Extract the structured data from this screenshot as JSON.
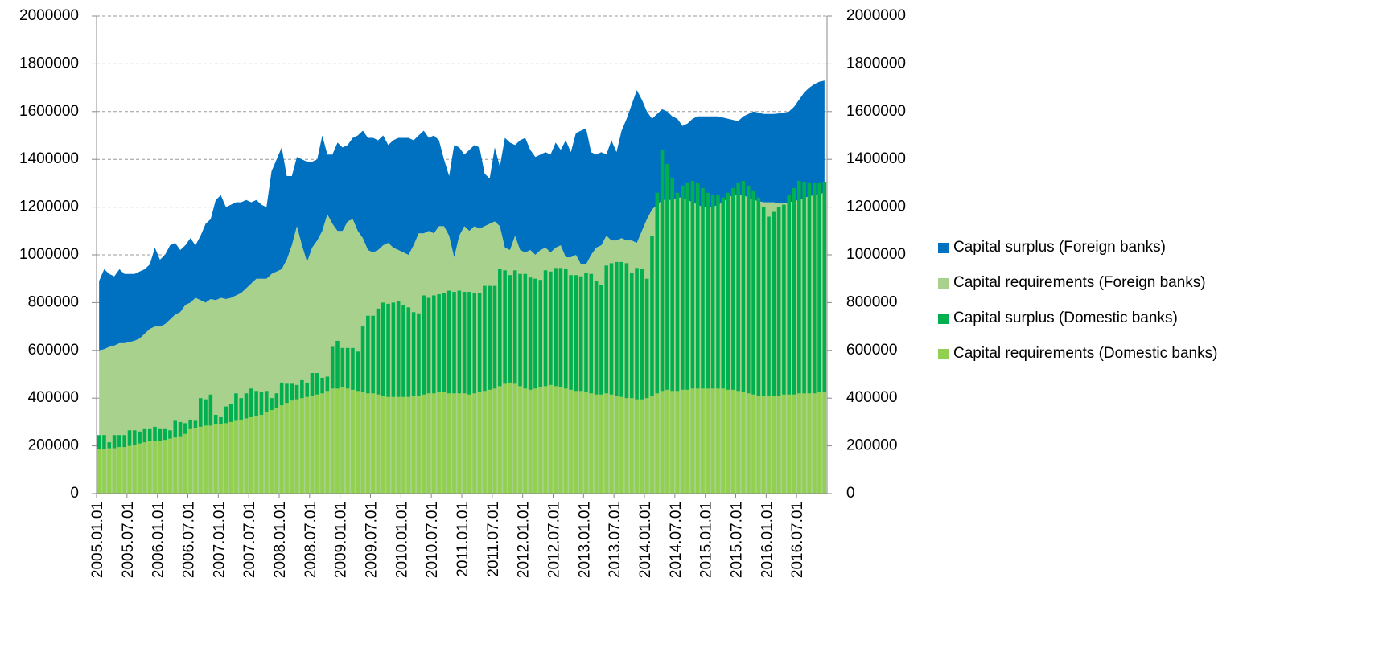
{
  "chart_data": {
    "type": "combo",
    "categories": [
      "2005.01.01",
      null,
      null,
      null,
      null,
      null,
      "2005.07.01",
      null,
      null,
      null,
      null,
      null,
      "2006.01.01",
      null,
      null,
      null,
      null,
      null,
      "2006.07.01",
      null,
      null,
      null,
      null,
      null,
      "2007.01.01",
      null,
      null,
      null,
      null,
      null,
      "2007.07.01",
      null,
      null,
      null,
      null,
      null,
      "2008.01.01",
      null,
      null,
      null,
      null,
      null,
      "2008.07.01",
      null,
      null,
      null,
      null,
      null,
      "2009.01.01",
      null,
      null,
      null,
      null,
      null,
      "2009.07.01",
      null,
      null,
      null,
      null,
      null,
      "2010.01.01",
      null,
      null,
      null,
      null,
      null,
      "2010.07.01",
      null,
      null,
      null,
      null,
      null,
      "2011.01.01",
      null,
      null,
      null,
      null,
      null,
      "2011.07.01",
      null,
      null,
      null,
      null,
      null,
      "2012.01.01",
      null,
      null,
      null,
      null,
      null,
      "2012.07.01",
      null,
      null,
      null,
      null,
      null,
      "2013.01.01",
      null,
      null,
      null,
      null,
      null,
      "2013.07.01",
      null,
      null,
      null,
      null,
      null,
      "2014.01.01",
      null,
      null,
      null,
      null,
      null,
      "2014.07.01",
      null,
      null,
      null,
      null,
      null,
      "2015.01.01",
      null,
      null,
      null,
      null,
      null,
      "2015.07.01",
      null,
      null,
      null,
      null,
      null,
      "2016.01.01",
      null,
      null,
      null,
      null,
      null,
      "2016.07.01",
      null,
      null,
      null,
      null,
      null
    ],
    "series": [
      {
        "name": "Capital surplus (Foreign banks)",
        "type": "area",
        "axis": "y2",
        "color": "#0070c0",
        "values": [
          290000,
          335000,
          305000,
          290000,
          310000,
          290000,
          285000,
          280000,
          280000,
          270000,
          270000,
          330000,
          280000,
          290000,
          310000,
          300000,
          260000,
          250000,
          270000,
          220000,
          270000,
          330000,
          335000,
          420000,
          430000,
          385000,
          390000,
          390000,
          380000,
          370000,
          340000,
          330000,
          310000,
          300000,
          430000,
          470000,
          510000,
          350000,
          290000,
          290000,
          360000,
          420000,
          360000,
          340000,
          400000,
          250000,
          290000,
          370000,
          350000,
          320000,
          340000,
          400000,
          450000,
          470000,
          480000,
          460000,
          460000,
          410000,
          450000,
          470000,
          480000,
          490000,
          440000,
          410000,
          430000,
          390000,
          410000,
          360000,
          280000,
          250000,
          470000,
          370000,
          300000,
          340000,
          340000,
          340000,
          220000,
          190000,
          310000,
          250000,
          460000,
          450000,
          380000,
          460000,
          480000,
          420000,
          410000,
          400000,
          400000,
          410000,
          440000,
          400000,
          490000,
          440000,
          510000,
          560000,
          570000,
          430000,
          390000,
          390000,
          340000,
          420000,
          370000,
          450000,
          510000,
          570000,
          640000,
          550000,
          450000,
          380000,
          380000,
          380000,
          370000,
          350000,
          330000,
          300000,
          320000,
          350000,
          370000,
          380000,
          380000,
          380000,
          370000,
          355000,
          330000,
          315000,
          310000,
          330000,
          350000,
          370000,
          370000,
          370000,
          370000,
          370000,
          377000,
          380000,
          380000,
          395000,
          420000,
          440000,
          455000,
          465000,
          470000,
          470000
        ]
      },
      {
        "name": "Capital requirements (Foreign banks)",
        "type": "area",
        "axis": "y2",
        "color": "#a9d18e",
        "values": [
          600000,
          605000,
          615000,
          620000,
          630000,
          630000,
          635000,
          640000,
          650000,
          670000,
          690000,
          700000,
          700000,
          710000,
          730000,
          750000,
          760000,
          790000,
          800000,
          820000,
          810000,
          800000,
          815000,
          810000,
          820000,
          815000,
          820000,
          830000,
          840000,
          860000,
          880000,
          900000,
          900000,
          900000,
          920000,
          930000,
          940000,
          980000,
          1040000,
          1120000,
          1040000,
          970000,
          1030000,
          1060000,
          1100000,
          1170000,
          1130000,
          1100000,
          1100000,
          1140000,
          1150000,
          1100000,
          1070000,
          1020000,
          1010000,
          1020000,
          1040000,
          1050000,
          1030000,
          1020000,
          1010000,
          1000000,
          1040000,
          1090000,
          1090000,
          1100000,
          1090000,
          1120000,
          1120000,
          1080000,
          990000,
          1080000,
          1120000,
          1100000,
          1120000,
          1110000,
          1120000,
          1130000,
          1140000,
          1120000,
          1030000,
          1020000,
          1080000,
          1020000,
          1010000,
          1020000,
          1000000,
          1020000,
          1030000,
          1010000,
          1030000,
          1040000,
          990000,
          990000,
          1000000,
          960000,
          960000,
          1000000,
          1030000,
          1040000,
          1080000,
          1060000,
          1060000,
          1070000,
          1060000,
          1060000,
          1050000,
          1100000,
          1150000,
          1190000,
          1210000,
          1230000,
          1230000,
          1230000,
          1240000,
          1240000,
          1230000,
          1220000,
          1210000,
          1200000,
          1200000,
          1200000,
          1210000,
          1220000,
          1240000,
          1250000,
          1250000,
          1250000,
          1240000,
          1230000,
          1225000,
          1220000,
          1220000,
          1220000,
          1215000,
          1215000,
          1220000,
          1225000,
          1230000,
          1240000,
          1245000,
          1250000,
          1255000,
          1260000
        ]
      },
      {
        "name": "Capital surplus (Domestic banks)",
        "type": "bar",
        "color": "#00b050",
        "values": [
          60000,
          60000,
          25000,
          55000,
          50000,
          50000,
          65000,
          60000,
          50000,
          55000,
          50000,
          60000,
          50000,
          45000,
          35000,
          70000,
          60000,
          45000,
          40000,
          30000,
          120000,
          110000,
          130000,
          40000,
          30000,
          70000,
          75000,
          115000,
          90000,
          105000,
          120000,
          105000,
          95000,
          90000,
          50000,
          60000,
          95000,
          80000,
          70000,
          60000,
          75000,
          60000,
          95000,
          90000,
          65000,
          60000,
          175000,
          200000,
          165000,
          170000,
          175000,
          165000,
          275000,
          325000,
          325000,
          360000,
          390000,
          390000,
          395000,
          400000,
          385000,
          375000,
          350000,
          345000,
          415000,
          400000,
          410000,
          410000,
          415000,
          430000,
          425000,
          430000,
          425000,
          430000,
          420000,
          415000,
          440000,
          435000,
          430000,
          490000,
          475000,
          450000,
          475000,
          470000,
          480000,
          470000,
          460000,
          450000,
          485000,
          475000,
          495000,
          500000,
          500000,
          480000,
          485000,
          480000,
          500000,
          500000,
          475000,
          460000,
          535000,
          550000,
          560000,
          565000,
          565000,
          525000,
          550000,
          545000,
          500000,
          670000,
          840000,
          1010000,
          945000,
          890000,
          830000,
          855000,
          865000,
          870000,
          860000,
          840000,
          820000,
          810000,
          810000,
          800000,
          825000,
          845000,
          870000,
          885000,
          870000,
          855000,
          830000,
          790000,
          750000,
          770000,
          790000,
          795000,
          835000,
          865000,
          890000,
          885000,
          880000,
          880000,
          875000,
          880000
        ]
      },
      {
        "name": "Capital requirements (Domestic banks)",
        "type": "bar",
        "color": "#92d050",
        "values": [
          185000,
          185000,
          190000,
          190000,
          195000,
          195000,
          200000,
          205000,
          210000,
          215000,
          220000,
          220000,
          220000,
          225000,
          230000,
          235000,
          240000,
          250000,
          270000,
          275000,
          280000,
          285000,
          285000,
          290000,
          290000,
          295000,
          300000,
          305000,
          310000,
          315000,
          320000,
          325000,
          330000,
          340000,
          350000,
          360000,
          370000,
          380000,
          390000,
          395000,
          400000,
          405000,
          410000,
          415000,
          420000,
          430000,
          440000,
          440000,
          445000,
          440000,
          435000,
          430000,
          425000,
          420000,
          420000,
          415000,
          410000,
          405000,
          405000,
          405000,
          405000,
          405000,
          410000,
          410000,
          415000,
          420000,
          420000,
          425000,
          425000,
          420000,
          420000,
          420000,
          420000,
          415000,
          420000,
          425000,
          430000,
          435000,
          440000,
          450000,
          460000,
          465000,
          460000,
          450000,
          440000,
          435000,
          440000,
          445000,
          450000,
          455000,
          450000,
          445000,
          440000,
          435000,
          430000,
          430000,
          425000,
          420000,
          415000,
          415000,
          420000,
          415000,
          410000,
          405000,
          400000,
          400000,
          395000,
          395000,
          400000,
          410000,
          420000,
          430000,
          435000,
          430000,
          430000,
          435000,
          435000,
          440000,
          440000,
          440000,
          440000,
          440000,
          440000,
          440000,
          435000,
          435000,
          430000,
          425000,
          420000,
          415000,
          410000,
          410000,
          410000,
          410000,
          410000,
          415000,
          415000,
          415000,
          420000,
          420000,
          420000,
          420000,
          425000,
          425000
        ]
      }
    ],
    "ylim": [
      0,
      2000000
    ],
    "yticks": [
      0,
      200000,
      400000,
      600000,
      800000,
      1000000,
      1200000,
      1400000,
      1600000,
      1800000,
      2000000
    ],
    "y2lim": [
      0,
      2000000
    ],
    "y2ticks": [
      0,
      200000,
      400000,
      600000,
      800000,
      1000000,
      1200000,
      1400000,
      1600000,
      1800000,
      2000000
    ],
    "grid": true,
    "legend": "right"
  }
}
